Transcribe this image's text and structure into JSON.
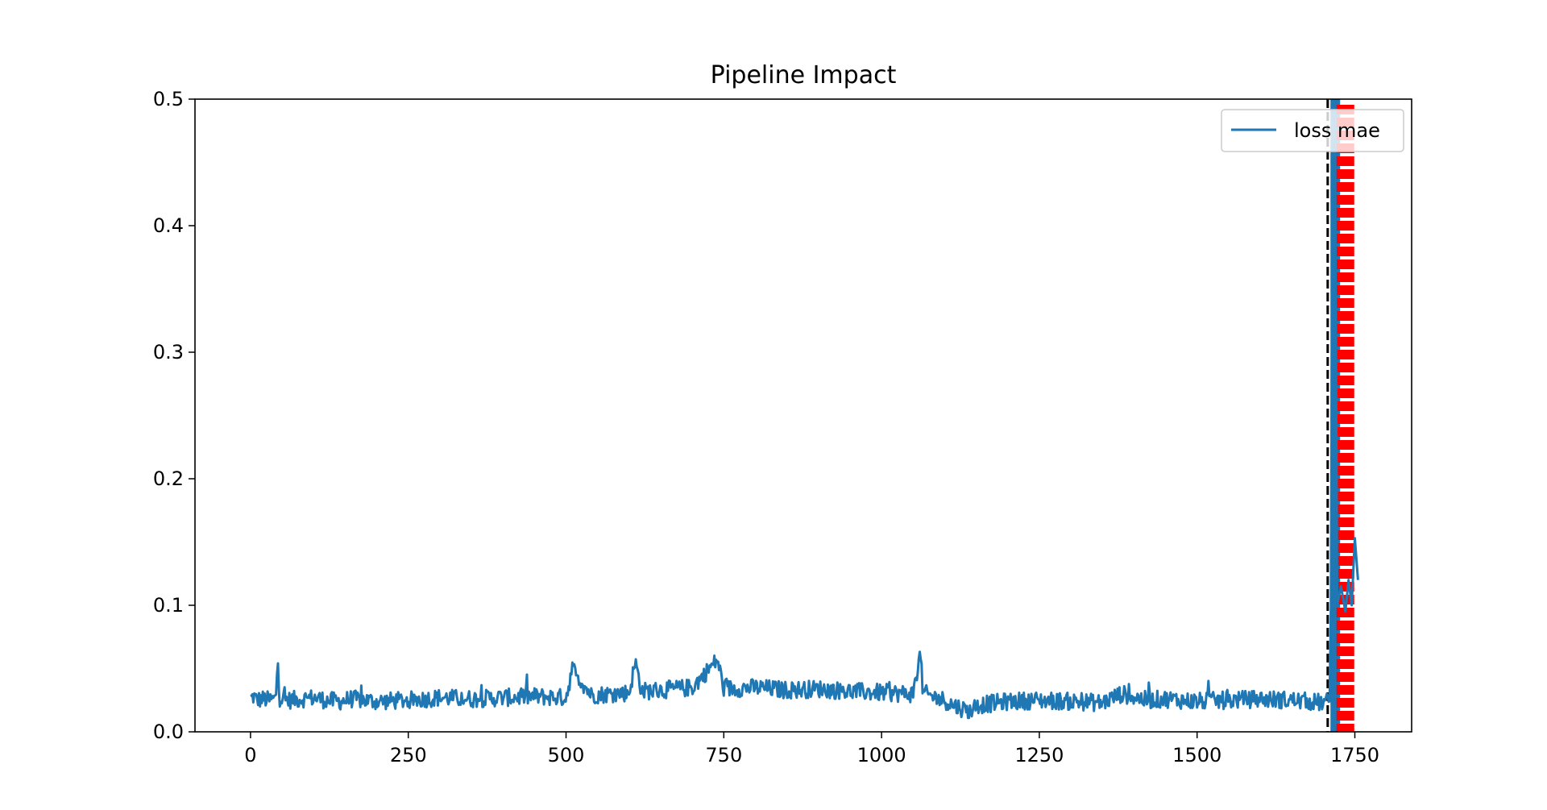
{
  "chart_data": {
    "type": "line",
    "title": "Pipeline Impact",
    "xlabel": "",
    "ylabel": "",
    "xlim": [
      -88,
      1840
    ],
    "ylim": [
      0,
      0.5
    ],
    "x_ticks": [
      0,
      250,
      500,
      750,
      1000,
      1250,
      1500,
      1750
    ],
    "x_tick_labels": [
      "0",
      "250",
      "500",
      "750",
      "1000",
      "1250",
      "1500",
      "1750"
    ],
    "y_ticks": [
      0.0,
      0.1,
      0.2,
      0.3,
      0.4,
      0.5
    ],
    "y_tick_labels": [
      "0.0",
      "0.1",
      "0.2",
      "0.3",
      "0.4",
      "0.5"
    ],
    "grid": false,
    "legend_position": "top-right",
    "series": [
      {
        "name": "loss mae",
        "color": "#1f77b4",
        "x": [
          0,
          5,
          10,
          20,
          30,
          40,
          43,
          46,
          60,
          80,
          100,
          120,
          140,
          160,
          180,
          200,
          250,
          300,
          350,
          400,
          450,
          500,
          510,
          540,
          570,
          600,
          610,
          620,
          650,
          700,
          740,
          750,
          800,
          850,
          900,
          950,
          1000,
          1050,
          1062,
          1065,
          1080,
          1100,
          1110,
          1120,
          1130,
          1140,
          1150,
          1200,
          1250,
          1300,
          1350,
          1380,
          1420,
          1450,
          1500,
          1550,
          1600,
          1650,
          1700,
          1710,
          1712,
          1715,
          1718,
          1722,
          1728,
          1735,
          1740,
          1745,
          1750,
          1755
        ],
        "y": [
          0.026,
          0.028,
          0.025,
          0.026,
          0.025,
          0.026,
          0.057,
          0.027,
          0.025,
          0.026,
          0.027,
          0.025,
          0.024,
          0.026,
          0.025,
          0.024,
          0.025,
          0.027,
          0.026,
          0.027,
          0.028,
          0.027,
          0.05,
          0.029,
          0.03,
          0.031,
          0.055,
          0.032,
          0.033,
          0.035,
          0.057,
          0.034,
          0.035,
          0.033,
          0.034,
          0.032,
          0.031,
          0.03,
          0.063,
          0.031,
          0.028,
          0.025,
          0.022,
          0.02,
          0.018,
          0.016,
          0.021,
          0.024,
          0.025,
          0.024,
          0.023,
          0.03,
          0.025,
          0.026,
          0.024,
          0.025,
          0.026,
          0.025,
          0.023,
          0.024,
          0.1,
          0.5,
          0.5,
          0.1,
          0.115,
          0.095,
          0.12,
          0.1,
          0.153,
          0.12
        ]
      }
    ],
    "vertical_lines": [
      {
        "x": 1707,
        "color": "#000000",
        "style": "dashed"
      },
      {
        "x": 1719,
        "color": "#1f77b4",
        "style": "solid"
      },
      {
        "x": 1735,
        "color": "#ff0000",
        "style": "dashed-band"
      }
    ]
  }
}
